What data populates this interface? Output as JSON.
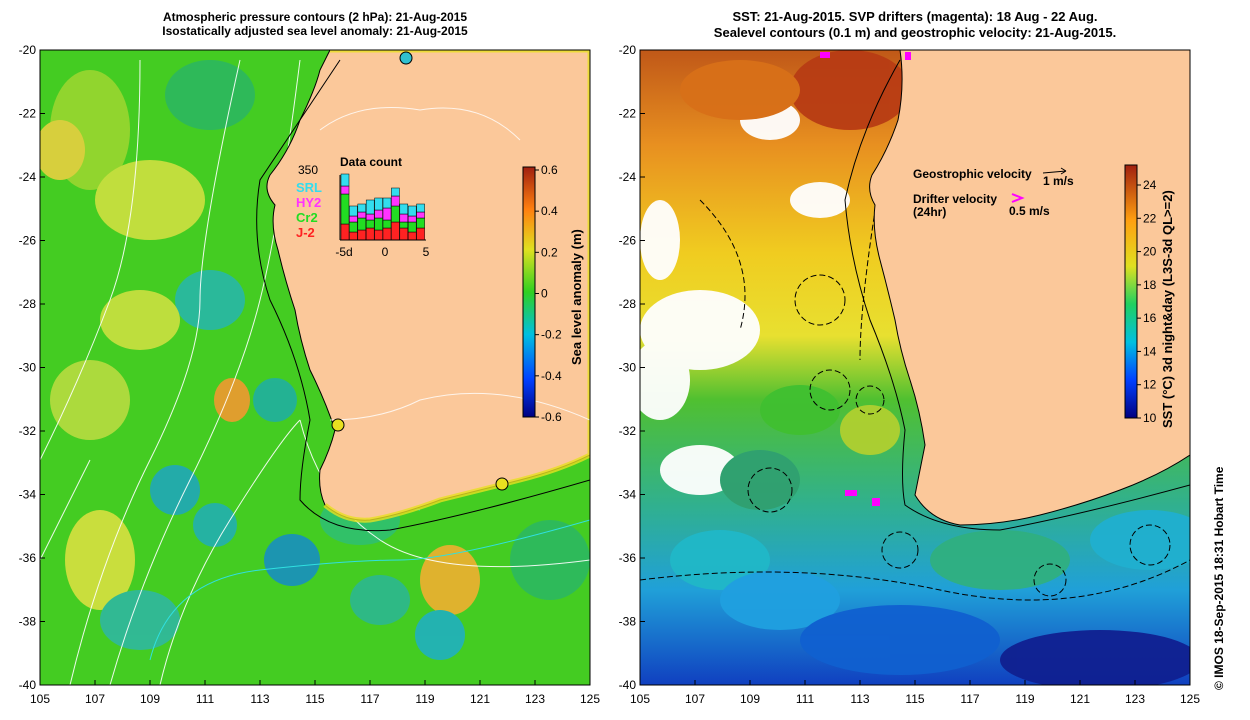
{
  "left_panel": {
    "title_line1": "Atmospheric pressure contours (2 hPa): 21-Aug-2015",
    "title_line2": "Isostatically adjusted sea level anomaly: 21-Aug-2015",
    "colorbar": {
      "label": "Sea level anomaly (m)",
      "ticks": [
        "0.6",
        "0.4",
        "0.2",
        "0",
        "-0.2",
        "-0.4",
        "-0.6"
      ]
    },
    "data_count": {
      "title": "Data count",
      "max_label": "350",
      "legend": [
        {
          "name": "SRL",
          "color": "#33ddee"
        },
        {
          "name": "HY2",
          "color": "#ff33ff"
        },
        {
          "name": "Cr2",
          "color": "#22dd22"
        },
        {
          "name": "J-2",
          "color": "#ff2222"
        }
      ],
      "x_ticks": [
        "-5d",
        "0",
        "5"
      ]
    }
  },
  "right_panel": {
    "title_line1": "SST: 21-Aug-2015. SVP drifters (magenta): 18 Aug - 22 Aug.",
    "title_line2": "Sealevel contours (0.1 m) and geostrophic velocity: 21-Aug-2015.",
    "geo_legend_label": "Geostrophic velocity",
    "geo_legend_unit": "1 m/s",
    "drifter_label_1": "Drifter velocity",
    "drifter_label_2": "(24hr)",
    "drifter_unit": "0.5 m/s",
    "colorbar": {
      "label": "SST (°C) 3d night&day (L3S-3d QL>=2)",
      "ticks": [
        "24",
        "22",
        "20",
        "18",
        "16",
        "14",
        "12",
        "10"
      ]
    }
  },
  "axes": {
    "x_ticks": [
      "105",
      "107",
      "109",
      "111",
      "113",
      "115",
      "117",
      "119",
      "121",
      "123",
      "125"
    ],
    "y_ticks": [
      "-20",
      "-22",
      "-24",
      "-26",
      "-28",
      "-30",
      "-32",
      "-34",
      "-36",
      "-38",
      "-40"
    ]
  },
  "credit": "© IMOS 18-Sep-2015 18:31 Hobart Time",
  "colors": {
    "land": "#fbc89a",
    "sla_green": "#3fcf1a",
    "sla_yellow": "#d8e040",
    "sla_cyan": "#2fb8b0",
    "sst_red": "#c4561a",
    "sst_orange": "#f0a020",
    "sst_yellow": "#f0d020",
    "sst_green": "#40c030",
    "sst_cyan": "#20b0d0",
    "sst_blue": "#1060d0",
    "drifter": "#ff00ff"
  }
}
